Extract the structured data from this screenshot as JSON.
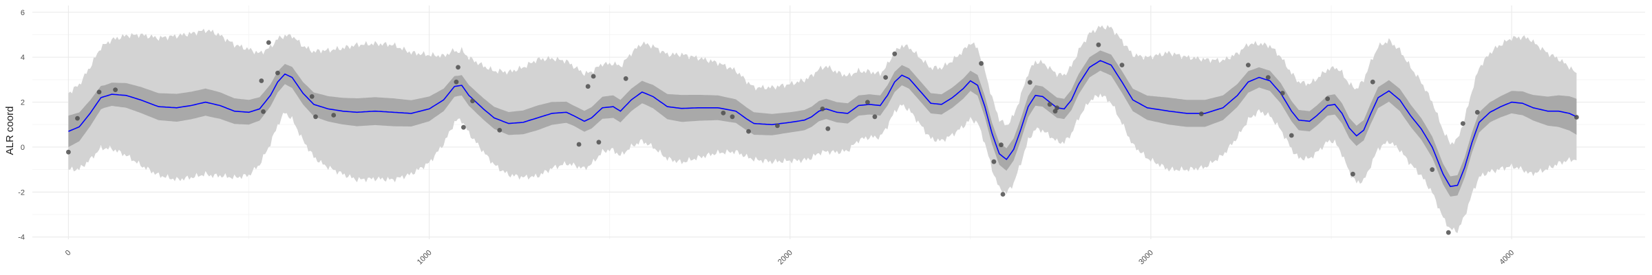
{
  "colors": {
    "background": "#ffffff",
    "grid_major": "#ebebeb",
    "grid_minor": "#f5f5f5",
    "band_outer": "#d3d3d3",
    "band_inner": "#a9a9a9",
    "line": "#0000ff",
    "points": "#4d4d4d",
    "tick_text": "#4d4d4d"
  },
  "chart_data": {
    "type": "line",
    "title": "",
    "xlabel": "",
    "ylabel": "ALR coord",
    "xlim": [
      -100,
      4370
    ],
    "ylim": [
      -4.1,
      6.3
    ],
    "x_ticks": [
      0,
      1000,
      2000,
      3000,
      4000
    ],
    "x_tick_labels": [
      "0",
      "1000",
      "2000",
      "3000",
      "4000"
    ],
    "y_ticks": [
      -4,
      -2,
      0,
      2,
      4,
      6
    ],
    "y_tick_labels": [
      "-4",
      "-2",
      "0",
      "2",
      "4",
      "6"
    ],
    "grid": true,
    "x_tick_label_rotation": -45,
    "mean_curve": [
      [
        0,
        0.7
      ],
      [
        30,
        0.9
      ],
      [
        60,
        1.5
      ],
      [
        90,
        2.2
      ],
      [
        120,
        2.35
      ],
      [
        160,
        2.3
      ],
      [
        200,
        2.1
      ],
      [
        250,
        1.8
      ],
      [
        300,
        1.75
      ],
      [
        340,
        1.85
      ],
      [
        380,
        2.0
      ],
      [
        420,
        1.85
      ],
      [
        460,
        1.6
      ],
      [
        500,
        1.55
      ],
      [
        530,
        1.7
      ],
      [
        560,
        2.3
      ],
      [
        580,
        2.9
      ],
      [
        600,
        3.25
      ],
      [
        620,
        3.1
      ],
      [
        650,
        2.4
      ],
      [
        680,
        1.9
      ],
      [
        720,
        1.7
      ],
      [
        760,
        1.6
      ],
      [
        800,
        1.55
      ],
      [
        850,
        1.6
      ],
      [
        900,
        1.55
      ],
      [
        950,
        1.5
      ],
      [
        1000,
        1.7
      ],
      [
        1040,
        2.1
      ],
      [
        1070,
        2.7
      ],
      [
        1090,
        2.75
      ],
      [
        1110,
        2.3
      ],
      [
        1150,
        1.7
      ],
      [
        1180,
        1.3
      ],
      [
        1220,
        1.05
      ],
      [
        1260,
        1.1
      ],
      [
        1300,
        1.3
      ],
      [
        1340,
        1.5
      ],
      [
        1380,
        1.55
      ],
      [
        1400,
        1.4
      ],
      [
        1430,
        1.15
      ],
      [
        1450,
        1.3
      ],
      [
        1480,
        1.75
      ],
      [
        1510,
        1.8
      ],
      [
        1530,
        1.6
      ],
      [
        1560,
        2.1
      ],
      [
        1590,
        2.45
      ],
      [
        1620,
        2.25
      ],
      [
        1660,
        1.8
      ],
      [
        1700,
        1.72
      ],
      [
        1750,
        1.75
      ],
      [
        1800,
        1.75
      ],
      [
        1850,
        1.6
      ],
      [
        1880,
        1.25
      ],
      [
        1900,
        1.05
      ],
      [
        1950,
        1.0
      ],
      [
        2000,
        1.1
      ],
      [
        2040,
        1.2
      ],
      [
        2060,
        1.35
      ],
      [
        2080,
        1.6
      ],
      [
        2100,
        1.7
      ],
      [
        2130,
        1.55
      ],
      [
        2160,
        1.5
      ],
      [
        2190,
        1.85
      ],
      [
        2220,
        1.9
      ],
      [
        2250,
        1.85
      ],
      [
        2270,
        2.3
      ],
      [
        2290,
        2.9
      ],
      [
        2310,
        3.2
      ],
      [
        2330,
        3.05
      ],
      [
        2360,
        2.5
      ],
      [
        2390,
        1.95
      ],
      [
        2420,
        1.9
      ],
      [
        2450,
        2.2
      ],
      [
        2480,
        2.6
      ],
      [
        2500,
        2.95
      ],
      [
        2520,
        2.75
      ],
      [
        2540,
        1.8
      ],
      [
        2560,
        0.6
      ],
      [
        2580,
        -0.3
      ],
      [
        2600,
        -0.55
      ],
      [
        2620,
        -0.1
      ],
      [
        2640,
        0.8
      ],
      [
        2660,
        1.8
      ],
      [
        2680,
        2.3
      ],
      [
        2700,
        2.25
      ],
      [
        2720,
        2.0
      ],
      [
        2740,
        1.75
      ],
      [
        2760,
        1.7
      ],
      [
        2780,
        2.1
      ],
      [
        2800,
        2.8
      ],
      [
        2830,
        3.55
      ],
      [
        2860,
        3.85
      ],
      [
        2890,
        3.65
      ],
      [
        2920,
        2.9
      ],
      [
        2950,
        2.1
      ],
      [
        2990,
        1.75
      ],
      [
        3050,
        1.6
      ],
      [
        3100,
        1.5
      ],
      [
        3150,
        1.5
      ],
      [
        3200,
        1.75
      ],
      [
        3240,
        2.3
      ],
      [
        3270,
        2.9
      ],
      [
        3300,
        3.1
      ],
      [
        3330,
        2.95
      ],
      [
        3360,
        2.4
      ],
      [
        3390,
        1.6
      ],
      [
        3410,
        1.2
      ],
      [
        3440,
        1.15
      ],
      [
        3460,
        1.4
      ],
      [
        3490,
        1.85
      ],
      [
        3510,
        1.9
      ],
      [
        3530,
        1.5
      ],
      [
        3550,
        0.85
      ],
      [
        3570,
        0.5
      ],
      [
        3590,
        0.75
      ],
      [
        3610,
        1.5
      ],
      [
        3630,
        2.2
      ],
      [
        3660,
        2.5
      ],
      [
        3690,
        2.1
      ],
      [
        3720,
        1.4
      ],
      [
        3750,
        0.8
      ],
      [
        3780,
        0.0
      ],
      [
        3810,
        -1.2
      ],
      [
        3830,
        -1.75
      ],
      [
        3850,
        -1.7
      ],
      [
        3870,
        -0.9
      ],
      [
        3890,
        0.2
      ],
      [
        3910,
        1.1
      ],
      [
        3940,
        1.55
      ],
      [
        3970,
        1.8
      ],
      [
        4000,
        2.0
      ],
      [
        4030,
        1.95
      ],
      [
        4060,
        1.75
      ],
      [
        4100,
        1.6
      ],
      [
        4130,
        1.6
      ],
      [
        4160,
        1.5
      ],
      [
        4180,
        1.35
      ]
    ],
    "inner_band_halfwidth": [
      [
        0,
        0.7
      ],
      [
        100,
        0.5
      ],
      [
        200,
        0.58
      ],
      [
        300,
        0.62
      ],
      [
        400,
        0.6
      ],
      [
        500,
        0.55
      ],
      [
        600,
        0.45
      ],
      [
        700,
        0.55
      ],
      [
        800,
        0.62
      ],
      [
        900,
        0.62
      ],
      [
        1000,
        0.55
      ],
      [
        1080,
        0.45
      ],
      [
        1200,
        0.5
      ],
      [
        1300,
        0.55
      ],
      [
        1400,
        0.45
      ],
      [
        1500,
        0.5
      ],
      [
        1600,
        0.5
      ],
      [
        1700,
        0.6
      ],
      [
        1800,
        0.55
      ],
      [
        1900,
        0.5
      ],
      [
        2000,
        0.45
      ],
      [
        2100,
        0.45
      ],
      [
        2200,
        0.45
      ],
      [
        2300,
        0.45
      ],
      [
        2400,
        0.45
      ],
      [
        2500,
        0.45
      ],
      [
        2600,
        0.5
      ],
      [
        2700,
        0.45
      ],
      [
        2800,
        0.45
      ],
      [
        2860,
        0.45
      ],
      [
        2950,
        0.5
      ],
      [
        3050,
        0.6
      ],
      [
        3150,
        0.6
      ],
      [
        3300,
        0.45
      ],
      [
        3400,
        0.45
      ],
      [
        3500,
        0.45
      ],
      [
        3600,
        0.45
      ],
      [
        3700,
        0.5
      ],
      [
        3830,
        0.45
      ],
      [
        3950,
        0.45
      ],
      [
        4050,
        0.55
      ],
      [
        4180,
        0.8
      ]
    ],
    "outer_band_halfwidth": [
      [
        0,
        1.7
      ],
      [
        100,
        2.3
      ],
      [
        200,
        2.9
      ],
      [
        300,
        3.2
      ],
      [
        400,
        3.2
      ],
      [
        500,
        2.8
      ],
      [
        600,
        1.7
      ],
      [
        700,
        2.5
      ],
      [
        800,
        3.0
      ],
      [
        900,
        3.0
      ],
      [
        1000,
        2.4
      ],
      [
        1080,
        1.5
      ],
      [
        1200,
        2.2
      ],
      [
        1300,
        2.6
      ],
      [
        1400,
        2.2
      ],
      [
        1500,
        1.9
      ],
      [
        1600,
        2.2
      ],
      [
        1700,
        2.4
      ],
      [
        1800,
        2.0
      ],
      [
        1900,
        1.6
      ],
      [
        2000,
        1.7
      ],
      [
        2100,
        1.9
      ],
      [
        2200,
        1.5
      ],
      [
        2300,
        1.3
      ],
      [
        2400,
        1.6
      ],
      [
        2500,
        1.7
      ],
      [
        2600,
        1.5
      ],
      [
        2700,
        1.5
      ],
      [
        2800,
        1.5
      ],
      [
        2860,
        1.5
      ],
      [
        2950,
        2.0
      ],
      [
        3050,
        2.6
      ],
      [
        3150,
        2.4
      ],
      [
        3300,
        1.5
      ],
      [
        3400,
        1.7
      ],
      [
        3500,
        1.6
      ],
      [
        3600,
        2.3
      ],
      [
        3700,
        2.2
      ],
      [
        3830,
        1.9
      ],
      [
        3950,
        2.7
      ],
      [
        4050,
        3.0
      ],
      [
        4180,
        1.9
      ]
    ],
    "points": [
      [
        0,
        -0.22
      ],
      [
        25,
        1.28
      ],
      [
        85,
        2.45
      ],
      [
        130,
        2.55
      ],
      [
        535,
        2.95
      ],
      [
        540,
        1.58
      ],
      [
        555,
        4.65
      ],
      [
        580,
        3.3
      ],
      [
        675,
        2.25
      ],
      [
        685,
        1.35
      ],
      [
        735,
        1.42
      ],
      [
        1075,
        2.9
      ],
      [
        1080,
        3.55
      ],
      [
        1095,
        0.88
      ],
      [
        1120,
        2.05
      ],
      [
        1195,
        0.75
      ],
      [
        1415,
        0.12
      ],
      [
        1440,
        2.7
      ],
      [
        1455,
        3.15
      ],
      [
        1470,
        0.22
      ],
      [
        1545,
        3.05
      ],
      [
        1815,
        1.52
      ],
      [
        1840,
        1.35
      ],
      [
        1885,
        0.7
      ],
      [
        1965,
        0.95
      ],
      [
        2090,
        1.7
      ],
      [
        2105,
        0.82
      ],
      [
        2215,
        2.0
      ],
      [
        2235,
        1.35
      ],
      [
        2265,
        3.1
      ],
      [
        2290,
        4.15
      ],
      [
        2530,
        3.72
      ],
      [
        2565,
        -0.65
      ],
      [
        2585,
        0.1
      ],
      [
        2590,
        -2.1
      ],
      [
        2665,
        2.88
      ],
      [
        2720,
        1.9
      ],
      [
        2735,
        1.6
      ],
      [
        2740,
        1.75
      ],
      [
        2855,
        4.55
      ],
      [
        2920,
        3.65
      ],
      [
        3140,
        1.48
      ],
      [
        3270,
        3.65
      ],
      [
        3325,
        3.1
      ],
      [
        3365,
        2.4
      ],
      [
        3390,
        0.52
      ],
      [
        3490,
        2.15
      ],
      [
        3560,
        -1.2
      ],
      [
        3615,
        2.9
      ],
      [
        3780,
        -1.0
      ],
      [
        3825,
        -3.8
      ],
      [
        3865,
        1.05
      ],
      [
        3905,
        1.55
      ],
      [
        4180,
        1.33
      ]
    ]
  }
}
